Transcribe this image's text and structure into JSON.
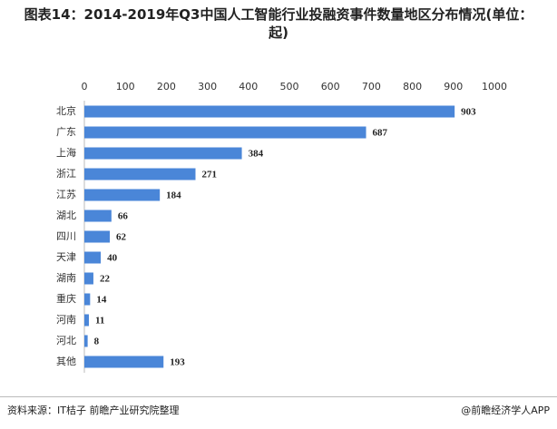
{
  "chart_data": {
    "type": "bar",
    "orientation": "horizontal",
    "title": "图表14：2014-2019年Q3中国人工智能行业投融资事件数量地区分布情况(单位：起)",
    "categories": [
      "北京",
      "广东",
      "上海",
      "浙江",
      "江苏",
      "湖北",
      "四川",
      "天津",
      "湖南",
      "重庆",
      "河南",
      "河北",
      "其他"
    ],
    "values": [
      903,
      687,
      384,
      271,
      184,
      66,
      62,
      40,
      22,
      14,
      11,
      8,
      193
    ],
    "color": "#4a86d8",
    "xlim": [
      0,
      1000
    ],
    "xticks": [
      0,
      100,
      200,
      300,
      400,
      500,
      600,
      700,
      800,
      900,
      1000
    ]
  },
  "footer": {
    "source": "资料来源：IT桔子 前瞻产业研究院整理",
    "watermark": "@前瞻经济学人APP"
  }
}
